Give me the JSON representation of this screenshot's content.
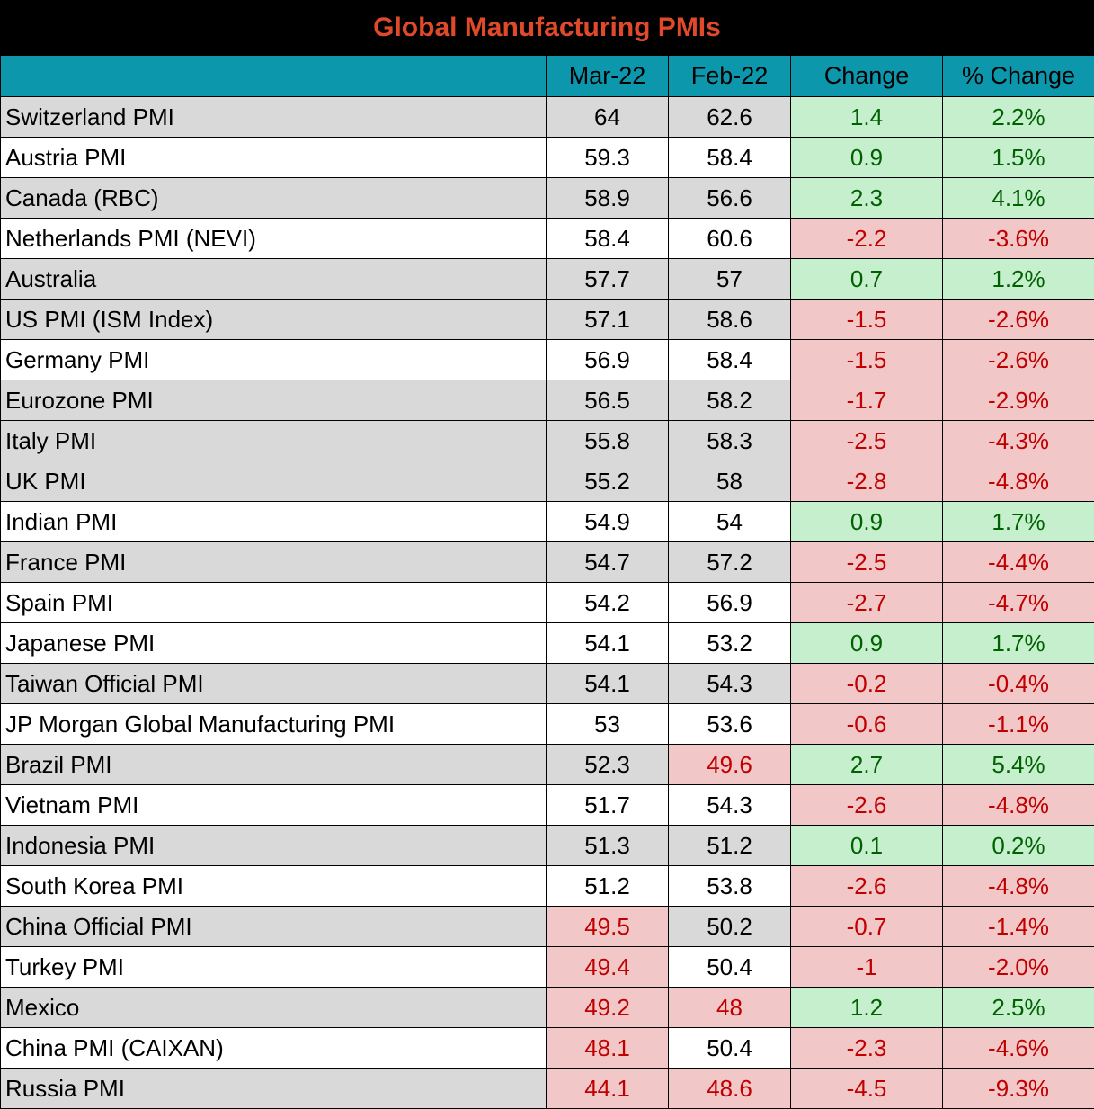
{
  "title": "Global Manufacturing PMIs",
  "colors": {
    "title_text": "#e04a2a",
    "header_bg": "#0d97ad",
    "positive_bg": "#c6efce",
    "positive_text": "#006100",
    "negative_bg": "#f2c7c7",
    "negative_text": "#c00000",
    "row_shade": "#d9d9d9"
  },
  "chart_data": {
    "type": "table",
    "title": "Global Manufacturing PMIs",
    "columns": [
      "",
      "Mar-22",
      "Feb-22",
      "Change",
      "% Change"
    ],
    "rows": [
      {
        "name": "Switzerland PMI",
        "mar": "64",
        "feb": "62.6",
        "change": "1.4",
        "pct": "2.2%"
      },
      {
        "name": "Austria PMI",
        "mar": "59.3",
        "feb": "58.4",
        "change": "0.9",
        "pct": "1.5%"
      },
      {
        "name": "Canada (RBC)",
        "mar": "58.9",
        "feb": "56.6",
        "change": "2.3",
        "pct": "4.1%"
      },
      {
        "name": "Netherlands PMI (NEVI)",
        "mar": "58.4",
        "feb": "60.6",
        "change": "-2.2",
        "pct": "-3.6%"
      },
      {
        "name": "Australia",
        "mar": "57.7",
        "feb": "57",
        "change": "0.7",
        "pct": "1.2%"
      },
      {
        "name": "US PMI (ISM Index)",
        "mar": "57.1",
        "feb": "58.6",
        "change": "-1.5",
        "pct": "-2.6%"
      },
      {
        "name": "Germany PMI",
        "mar": "56.9",
        "feb": "58.4",
        "change": "-1.5",
        "pct": "-2.6%"
      },
      {
        "name": "Eurozone PMI",
        "mar": "56.5",
        "feb": "58.2",
        "change": "-1.7",
        "pct": "-2.9%"
      },
      {
        "name": "Italy PMI",
        "mar": "55.8",
        "feb": "58.3",
        "change": "-2.5",
        "pct": "-4.3%"
      },
      {
        "name": "UK PMI",
        "mar": "55.2",
        "feb": "58",
        "change": "-2.8",
        "pct": "-4.8%"
      },
      {
        "name": "Indian PMI",
        "mar": "54.9",
        "feb": "54",
        "change": "0.9",
        "pct": "1.7%"
      },
      {
        "name": "France PMI",
        "mar": "54.7",
        "feb": "57.2",
        "change": "-2.5",
        "pct": "-4.4%"
      },
      {
        "name": "Spain PMI",
        "mar": "54.2",
        "feb": "56.9",
        "change": "-2.7",
        "pct": "-4.7%"
      },
      {
        "name": "Japanese PMI",
        "mar": "54.1",
        "feb": "53.2",
        "change": "0.9",
        "pct": "1.7%"
      },
      {
        "name": "Taiwan Official PMI",
        "mar": "54.1",
        "feb": "54.3",
        "change": "-0.2",
        "pct": "-0.4%"
      },
      {
        "name": "JP Morgan Global Manufacturing PMI",
        "mar": "53",
        "feb": "53.6",
        "change": "-0.6",
        "pct": "-1.1%"
      },
      {
        "name": "Brazil PMI",
        "mar": "52.3",
        "feb": "49.6",
        "change": "2.7",
        "pct": "5.4%"
      },
      {
        "name": "Vietnam PMI",
        "mar": "51.7",
        "feb": "54.3",
        "change": "-2.6",
        "pct": "-4.8%"
      },
      {
        "name": "Indonesia PMI",
        "mar": "51.3",
        "feb": "51.2",
        "change": "0.1",
        "pct": "0.2%"
      },
      {
        "name": "South Korea PMI",
        "mar": "51.2",
        "feb": "53.8",
        "change": "-2.6",
        "pct": "-4.8%"
      },
      {
        "name": "China Official PMI",
        "mar": "49.5",
        "feb": "50.2",
        "change": "-0.7",
        "pct": "-1.4%"
      },
      {
        "name": "Turkey PMI",
        "mar": "49.4",
        "feb": "50.4",
        "change": "-1",
        "pct": "-2.0%"
      },
      {
        "name": "Mexico",
        "mar": "49.2",
        "feb": "48",
        "change": "1.2",
        "pct": "2.5%"
      },
      {
        "name": "China PMI (CAIXAN)",
        "mar": "48.1",
        "feb": "50.4",
        "change": "-2.3",
        "pct": "-4.6%"
      },
      {
        "name": "Russia PMI",
        "mar": "44.1",
        "feb": "48.6",
        "change": "-4.5",
        "pct": "-9.3%"
      }
    ],
    "row_shading": [
      "shade",
      "plain",
      "shade",
      "plain",
      "shade",
      "shade",
      "plain",
      "shade",
      "shade",
      "shade",
      "plain",
      "shade",
      "plain",
      "plain",
      "shade",
      "plain",
      "shade",
      "plain",
      "shade",
      "plain",
      "shade",
      "plain",
      "shade",
      "plain",
      "shade"
    ]
  }
}
